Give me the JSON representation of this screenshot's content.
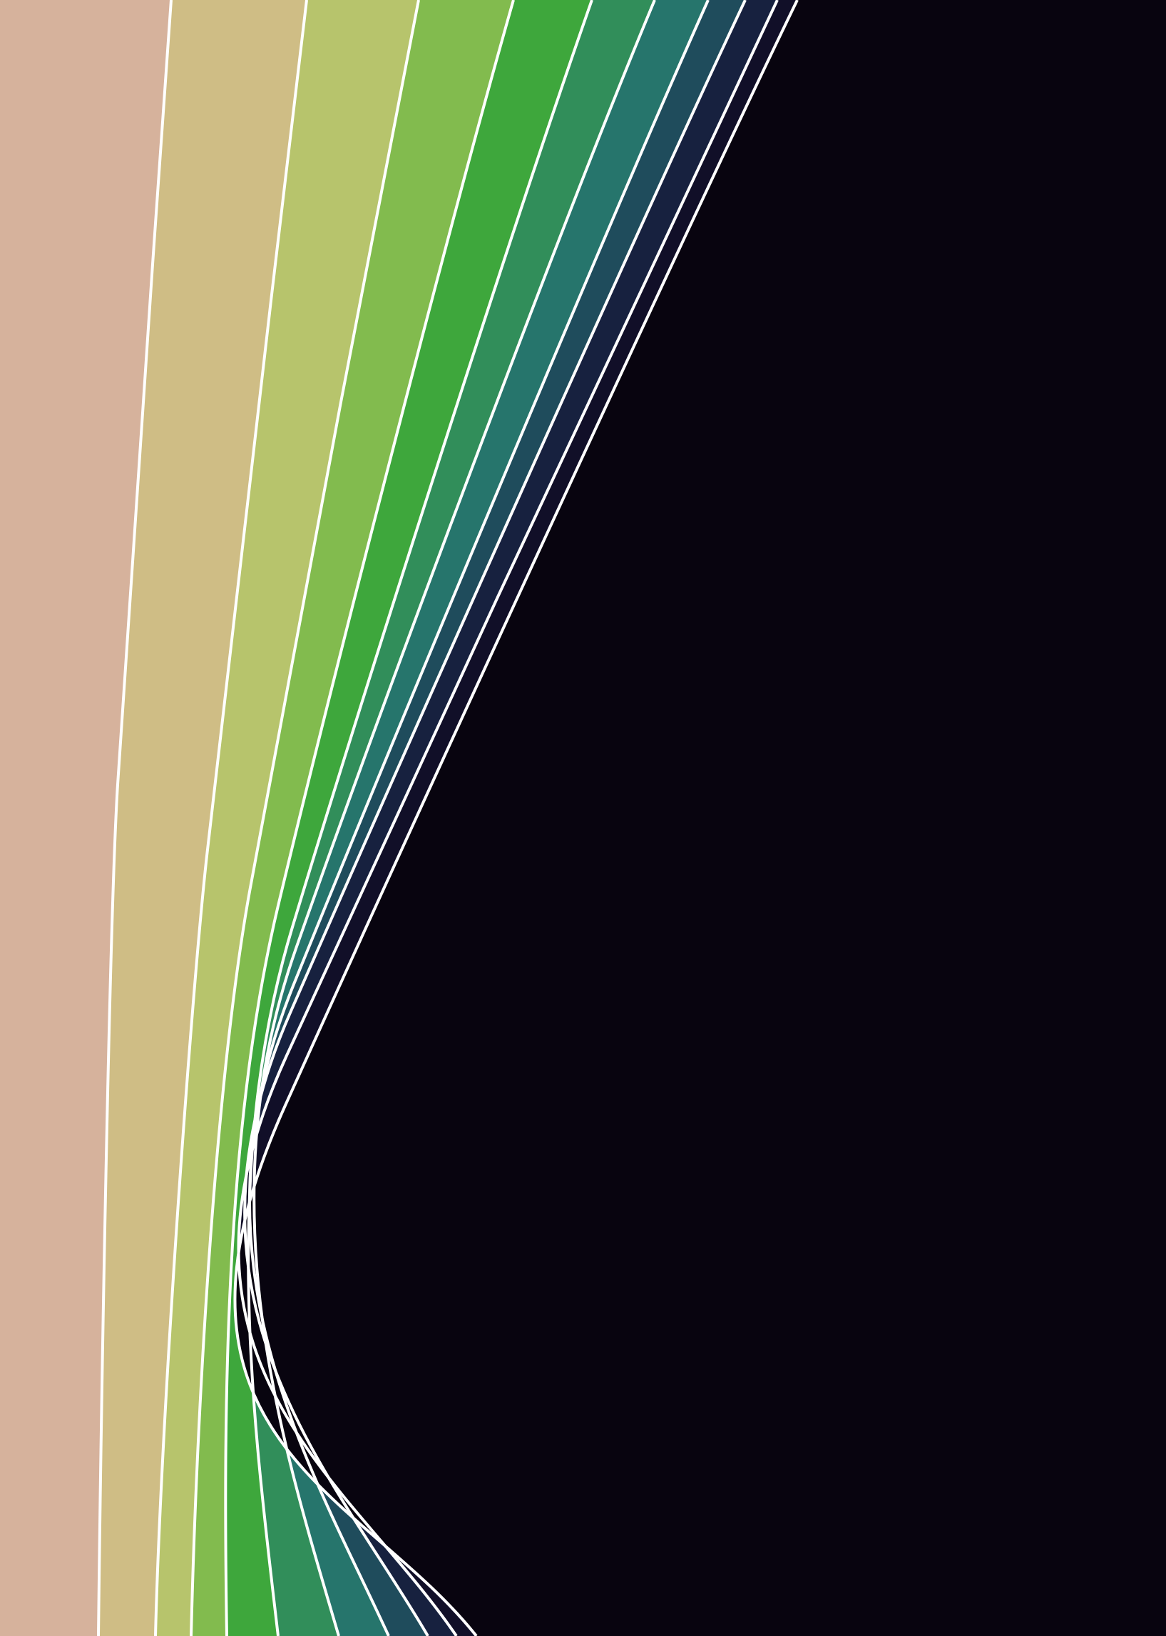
{
  "artwork": {
    "kind": "abstract-curved-color-bands",
    "stroke_color": "#ffffff",
    "band_colors": [
      "#d6b29c",
      "#cfbd85",
      "#b7c46c",
      "#82bb4e",
      "#3ea73c",
      "#318e5a",
      "#26756c",
      "#1f4c5c",
      "#17213f",
      "#110f28",
      "#08040f"
    ]
  }
}
